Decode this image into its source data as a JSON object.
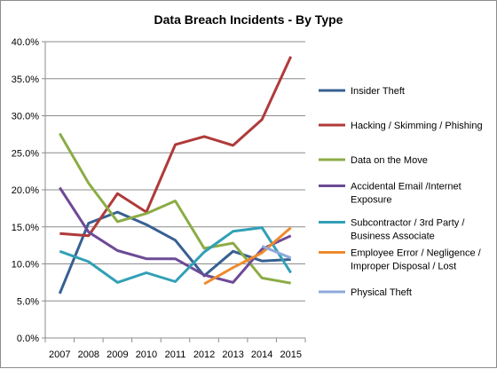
{
  "chart_data": {
    "type": "line",
    "title": "Data Breach Incidents - By Type",
    "x": [
      "2007",
      "2008",
      "2009",
      "2010",
      "2011",
      "2012",
      "2013",
      "2014",
      "2015"
    ],
    "ylim": [
      0,
      40
    ],
    "yticks": [
      "0.0%",
      "5.0%",
      "10.0%",
      "15.0%",
      "20.0%",
      "25.0%",
      "30.0%",
      "35.0%",
      "40.0%"
    ],
    "y_unit": "%",
    "grid": "horizontal",
    "legend_position": "right",
    "series": [
      {
        "name": "Insider Theft",
        "legend_lines": [
          "Insider Theft"
        ],
        "color": "#376092",
        "values": [
          6.0,
          15.5,
          17.0,
          15.3,
          13.2,
          8.4,
          11.7,
          10.4,
          10.6
        ]
      },
      {
        "name": "Hacking / Skimming / Phishing",
        "legend_lines": [
          "Hacking / Skimming / Phishing"
        ],
        "color": "#b03a3a",
        "values": [
          14.1,
          13.8,
          19.5,
          17.0,
          26.1,
          27.2,
          26.0,
          29.5,
          38.0
        ]
      },
      {
        "name": "Data on the Move",
        "legend_lines": [
          "Data on the Move"
        ],
        "color": "#8bac45",
        "values": [
          27.6,
          20.9,
          15.7,
          16.8,
          18.5,
          12.1,
          12.8,
          8.1,
          7.4
        ]
      },
      {
        "name": "Accidental Email  /Internet Exposure",
        "legend_lines": [
          "Accidental Email  /Internet",
          "Exposure"
        ],
        "color": "#6d4a96",
        "values": [
          20.3,
          14.3,
          11.8,
          10.7,
          10.7,
          8.5,
          7.5,
          12.0,
          13.8
        ]
      },
      {
        "name": "Subcontractor / 3rd Party / Business Associate",
        "legend_lines": [
          "Subcontractor / 3rd Party /",
          "Business Associate"
        ],
        "color": "#31a0b6",
        "values": [
          11.7,
          10.3,
          7.5,
          8.8,
          7.6,
          11.6,
          14.4,
          14.9,
          8.8
        ]
      },
      {
        "name": "Employee Error / Negligence / Improper Disposal / Lost",
        "legend_lines": [
          "Employee Error / Negligence /",
          "Improper Disposal / Lost"
        ],
        "color": "#ee8b2d",
        "values": [
          null,
          null,
          null,
          null,
          null,
          7.3,
          9.5,
          11.5,
          14.9
        ]
      },
      {
        "name": "Physical Theft",
        "legend_lines": [
          "Physical Theft"
        ],
        "color": "#8eaadb",
        "values": [
          null,
          null,
          null,
          null,
          null,
          null,
          null,
          12.4,
          10.8
        ]
      }
    ]
  }
}
